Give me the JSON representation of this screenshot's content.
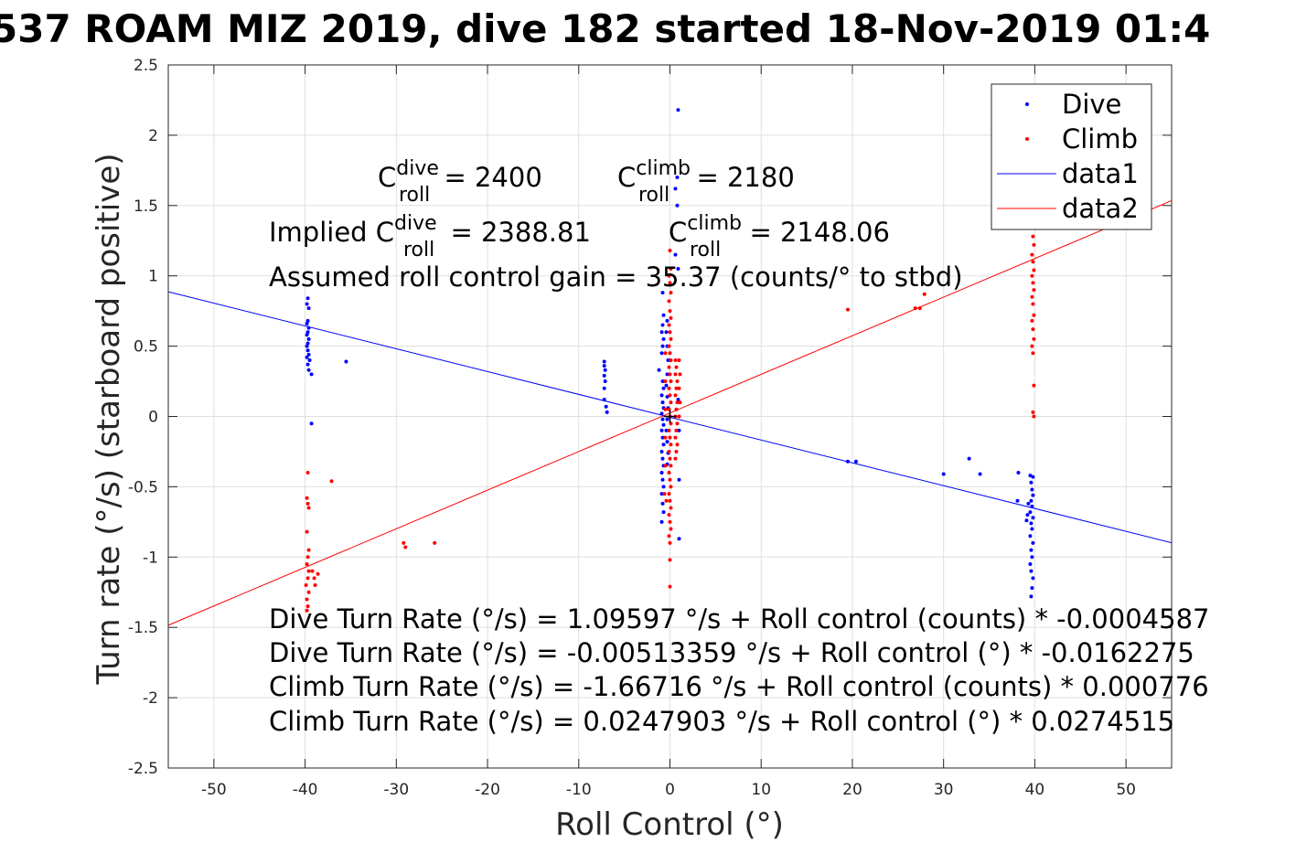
{
  "chart_data": {
    "type": "scatter",
    "title": "537 ROAM MIZ 2019, dive 182 started 18-Nov-2019 01:4",
    "xlabel": "Roll Control (°)",
    "ylabel": "Turn rate (°/s) (starboard positive)",
    "xlim": [
      -55,
      55
    ],
    "ylim": [
      -2.5,
      2.5
    ],
    "xticks": [
      -50,
      -40,
      -30,
      -20,
      -10,
      0,
      10,
      20,
      30,
      40,
      50
    ],
    "yticks": [
      -2.5,
      -2,
      -1.5,
      -1,
      -0.5,
      0,
      0.5,
      1,
      1.5,
      2,
      2.5
    ],
    "xtick_labels": [
      "-50",
      "-40",
      "-30",
      "-20",
      "-10",
      "0",
      "10",
      "20",
      "30",
      "40",
      "50"
    ],
    "ytick_labels": [
      "-2.5",
      "-2",
      "-1.5",
      "-1",
      "-0.5",
      "0",
      "0.5",
      "1",
      "1.5",
      "2",
      "2.5"
    ],
    "grid": true,
    "legend_position": "top-right",
    "series": [
      {
        "name": "Dive",
        "kind": "points",
        "color": "#0000ff",
        "points": [
          [
            -39.7,
            0.84
          ],
          [
            -39.8,
            0.8
          ],
          [
            -39.6,
            0.77
          ],
          [
            -39.7,
            0.68
          ],
          [
            -39.8,
            0.66
          ],
          [
            -39.6,
            0.63
          ],
          [
            -39.7,
            0.6
          ],
          [
            -39.8,
            0.58
          ],
          [
            -39.6,
            0.55
          ],
          [
            -39.7,
            0.52
          ],
          [
            -39.8,
            0.5
          ],
          [
            -39.7,
            0.47
          ],
          [
            -39.6,
            0.44
          ],
          [
            -39.8,
            0.42
          ],
          [
            -39.5,
            0.4
          ],
          [
            -39.7,
            0.37
          ],
          [
            -39.6,
            0.33
          ],
          [
            -39.3,
            0.3
          ],
          [
            -35.5,
            0.39
          ],
          [
            -39.3,
            -0.05
          ],
          [
            -7.2,
            0.39
          ],
          [
            -7.2,
            0.36
          ],
          [
            -7.1,
            0.33
          ],
          [
            -7.2,
            0.29
          ],
          [
            -7.1,
            0.25
          ],
          [
            -7.2,
            0.2
          ],
          [
            -7.2,
            0.12
          ],
          [
            -7.0,
            0.07
          ],
          [
            -6.9,
            0.03
          ],
          [
            0.9,
            2.18
          ],
          [
            0.8,
            1.7
          ],
          [
            0.6,
            1.62
          ],
          [
            0.8,
            1.5
          ],
          [
            0.6,
            1.15
          ],
          [
            0.9,
            1.05
          ],
          [
            -0.8,
            0.88
          ],
          [
            -0.7,
            0.72
          ],
          [
            -0.8,
            0.65
          ],
          [
            -0.9,
            0.6
          ],
          [
            -0.7,
            0.55
          ],
          [
            -0.8,
            0.5
          ],
          [
            -0.9,
            0.45
          ],
          [
            -1.2,
            0.33
          ],
          [
            -0.8,
            0.25
          ],
          [
            -0.7,
            0.2
          ],
          [
            -0.9,
            0.15
          ],
          [
            -0.8,
            0.1
          ],
          [
            -0.7,
            0.06
          ],
          [
            -0.9,
            0.02
          ],
          [
            -0.8,
            -0.02
          ],
          [
            -0.7,
            -0.06
          ],
          [
            -0.9,
            -0.1
          ],
          [
            -0.8,
            -0.15
          ],
          [
            -0.7,
            -0.2
          ],
          [
            -0.9,
            -0.25
          ],
          [
            -0.8,
            -0.3
          ],
          [
            -0.7,
            -0.35
          ],
          [
            -0.9,
            -0.4
          ],
          [
            -0.8,
            -0.45
          ],
          [
            -0.7,
            -0.5
          ],
          [
            -0.9,
            -0.55
          ],
          [
            -0.8,
            -0.62
          ],
          [
            -0.7,
            -0.68
          ],
          [
            -0.9,
            -0.75
          ],
          [
            -0.3,
            0.68
          ],
          [
            -0.4,
            0.6
          ],
          [
            -0.3,
            0.5
          ],
          [
            -0.2,
            0.4
          ],
          [
            -0.3,
            0.3
          ],
          [
            -0.4,
            0.22
          ],
          [
            -0.3,
            0.14
          ],
          [
            -0.2,
            0.06
          ],
          [
            -0.3,
            -0.02
          ],
          [
            -0.4,
            -0.1
          ],
          [
            -0.3,
            -0.18
          ],
          [
            -0.2,
            -0.26
          ],
          [
            -0.3,
            -0.34
          ],
          [
            0.9,
            0.12
          ],
          [
            1.0,
            -0.1
          ],
          [
            1.0,
            -0.45
          ],
          [
            1.0,
            -0.87
          ],
          [
            19.5,
            -0.32
          ],
          [
            20.4,
            -0.32
          ],
          [
            30.0,
            -0.41
          ],
          [
            32.8,
            -0.3
          ],
          [
            34.0,
            -0.41
          ],
          [
            38.2,
            -0.4
          ],
          [
            38.1,
            -0.6
          ],
          [
            39.5,
            -0.42
          ],
          [
            39.8,
            -0.43
          ],
          [
            39.6,
            -0.47
          ],
          [
            39.7,
            -0.52
          ],
          [
            39.8,
            -0.56
          ],
          [
            39.6,
            -0.6
          ],
          [
            39.7,
            -0.64
          ],
          [
            39.5,
            -0.68
          ],
          [
            39.8,
            -0.72
          ],
          [
            39.6,
            -0.76
          ],
          [
            39.7,
            -0.8
          ],
          [
            39.5,
            -0.85
          ],
          [
            39.8,
            -0.9
          ],
          [
            39.6,
            -0.95
          ],
          [
            39.7,
            -1.0
          ],
          [
            39.5,
            -1.05
          ],
          [
            39.6,
            -1.1
          ],
          [
            39.8,
            -1.15
          ],
          [
            39.7,
            -1.22
          ],
          [
            39.6,
            -1.28
          ],
          [
            39.3,
            -0.62
          ],
          [
            39.2,
            -0.7
          ],
          [
            39.1,
            -0.74
          ]
        ]
      },
      {
        "name": "Climb",
        "kind": "points",
        "color": "#ff0000",
        "points": [
          [
            -39.7,
            -0.4
          ],
          [
            -39.8,
            -0.58
          ],
          [
            -39.7,
            -0.62
          ],
          [
            -39.6,
            -0.65
          ],
          [
            -39.8,
            -0.82
          ],
          [
            -39.6,
            -0.95
          ],
          [
            -39.7,
            -1.0
          ],
          [
            -39.8,
            -1.05
          ],
          [
            -39.6,
            -1.1
          ],
          [
            -39.7,
            -1.15
          ],
          [
            -39.9,
            -1.2
          ],
          [
            -39.6,
            -1.25
          ],
          [
            -39.8,
            -1.3
          ],
          [
            -39.7,
            -1.35
          ],
          [
            -39.8,
            -1.38
          ],
          [
            -39.2,
            -1.1
          ],
          [
            -39.0,
            -1.15
          ],
          [
            -38.9,
            -1.2
          ],
          [
            -38.6,
            -1.12
          ],
          [
            -37.1,
            -0.46
          ],
          [
            -29.2,
            -0.9
          ],
          [
            -29.0,
            -0.93
          ],
          [
            -25.8,
            -0.9
          ],
          [
            0.0,
            1.18
          ],
          [
            0.1,
            1.05
          ],
          [
            -0.1,
            1.0
          ],
          [
            0.0,
            0.95
          ],
          [
            0.1,
            0.88
          ],
          [
            -0.1,
            0.82
          ],
          [
            0.0,
            0.75
          ],
          [
            0.1,
            0.7
          ],
          [
            -0.1,
            0.65
          ],
          [
            0.0,
            0.6
          ],
          [
            0.1,
            0.55
          ],
          [
            -0.1,
            0.5
          ],
          [
            0.0,
            0.45
          ],
          [
            0.1,
            0.4
          ],
          [
            -0.1,
            0.35
          ],
          [
            0.0,
            0.3
          ],
          [
            0.1,
            0.25
          ],
          [
            -0.1,
            0.2
          ],
          [
            0.0,
            0.15
          ],
          [
            0.1,
            0.1
          ],
          [
            -0.1,
            0.05
          ],
          [
            0.0,
            0.0
          ],
          [
            0.1,
            -0.05
          ],
          [
            -0.1,
            -0.1
          ],
          [
            0.0,
            -0.15
          ],
          [
            0.1,
            -0.2
          ],
          [
            -0.1,
            -0.25
          ],
          [
            0.0,
            -0.3
          ],
          [
            0.1,
            -0.35
          ],
          [
            -0.1,
            -0.4
          ],
          [
            0.0,
            -0.45
          ],
          [
            0.1,
            -0.5
          ],
          [
            -0.1,
            -0.55
          ],
          [
            0.0,
            -0.6
          ],
          [
            0.1,
            -0.65
          ],
          [
            -0.1,
            -0.7
          ],
          [
            0.0,
            -0.75
          ],
          [
            0.1,
            -0.8
          ],
          [
            -0.1,
            -0.85
          ],
          [
            0.0,
            -0.9
          ],
          [
            0.0,
            -1.02
          ],
          [
            0.0,
            -1.21
          ],
          [
            0.6,
            0.4
          ],
          [
            0.7,
            0.35
          ],
          [
            0.6,
            0.3
          ],
          [
            0.8,
            0.25
          ],
          [
            0.7,
            0.2
          ],
          [
            0.6,
            0.15
          ],
          [
            0.8,
            0.1
          ],
          [
            0.7,
            0.05
          ],
          [
            0.6,
            0.0
          ],
          [
            0.8,
            -0.05
          ],
          [
            0.7,
            -0.1
          ],
          [
            0.6,
            -0.15
          ],
          [
            0.8,
            -0.2
          ],
          [
            0.7,
            -0.25
          ],
          [
            0.6,
            -0.3
          ],
          [
            1.0,
            0.4
          ],
          [
            1.1,
            0.3
          ],
          [
            1.0,
            0.2
          ],
          [
            1.1,
            0.1
          ],
          [
            1.0,
            0.0
          ],
          [
            -0.5,
            0.45
          ],
          [
            -0.5,
            0.25
          ],
          [
            -0.5,
            0.05
          ],
          [
            -0.5,
            -0.15
          ],
          [
            -0.5,
            -0.35
          ],
          [
            -0.6,
            -0.55
          ],
          [
            -0.4,
            -0.6
          ],
          [
            19.5,
            0.76
          ],
          [
            26.9,
            0.77
          ],
          [
            27.4,
            0.77
          ],
          [
            27.9,
            0.87
          ],
          [
            39.8,
            1.28
          ],
          [
            39.9,
            1.22
          ],
          [
            39.7,
            1.15
          ],
          [
            39.8,
            1.1
          ],
          [
            39.9,
            1.04
          ],
          [
            39.7,
            1.0
          ],
          [
            39.8,
            0.95
          ],
          [
            39.9,
            0.9
          ],
          [
            39.7,
            0.85
          ],
          [
            39.8,
            0.8
          ],
          [
            39.9,
            0.72
          ],
          [
            39.7,
            0.68
          ],
          [
            39.8,
            0.62
          ],
          [
            39.9,
            0.55
          ],
          [
            39.7,
            0.5
          ],
          [
            39.8,
            0.45
          ],
          [
            39.9,
            0.22
          ],
          [
            39.8,
            0.03
          ],
          [
            39.9,
            0.0
          ]
        ]
      },
      {
        "name": "data1",
        "kind": "line",
        "color": "#0000ff",
        "x": [
          -55,
          55
        ],
        "y": [
          0.887,
          -0.898
        ]
      },
      {
        "name": "data2",
        "kind": "line",
        "color": "#ff0000",
        "x": [
          -55,
          55
        ],
        "y": [
          -1.485,
          1.535
        ]
      }
    ],
    "center_marker": [
      0,
      0
    ],
    "annotations": {
      "c_dive_pre": "C",
      "c_dive_sup": "dive",
      "c_dive_sub": "roll",
      "c_dive_val": " = 2400",
      "c_climb_pre": "C",
      "c_climb_sup": "climb",
      "c_climb_sub": "roll",
      "c_climb_val": " = 2180",
      "implied_prefix": "Implied C",
      "implied_dive_sup": "dive",
      "implied_dive_sub": "roll",
      "implied_dive_val": " = 2388.81",
      "implied_climb_pre": "C",
      "implied_climb_sup": "climb",
      "implied_climb_sub": "roll",
      "implied_climb_val": " = 2148.06",
      "gain": "Assumed roll control gain = 35.37 (counts/° to stbd)",
      "eq1": "Dive Turn Rate (°/s) = 1.09597 °/s + Roll control (counts) * -0.0004587",
      "eq2": "Dive Turn Rate (°/s) = -0.00513359 °/s + Roll control (°) * -0.0162275",
      "eq3": "Climb Turn Rate (°/s) = -1.66716 °/s + Roll control (counts) * 0.000776",
      "eq4": "Climb Turn Rate (°/s) = 0.0247903 °/s + Roll control (°) * 0.0274515"
    }
  }
}
